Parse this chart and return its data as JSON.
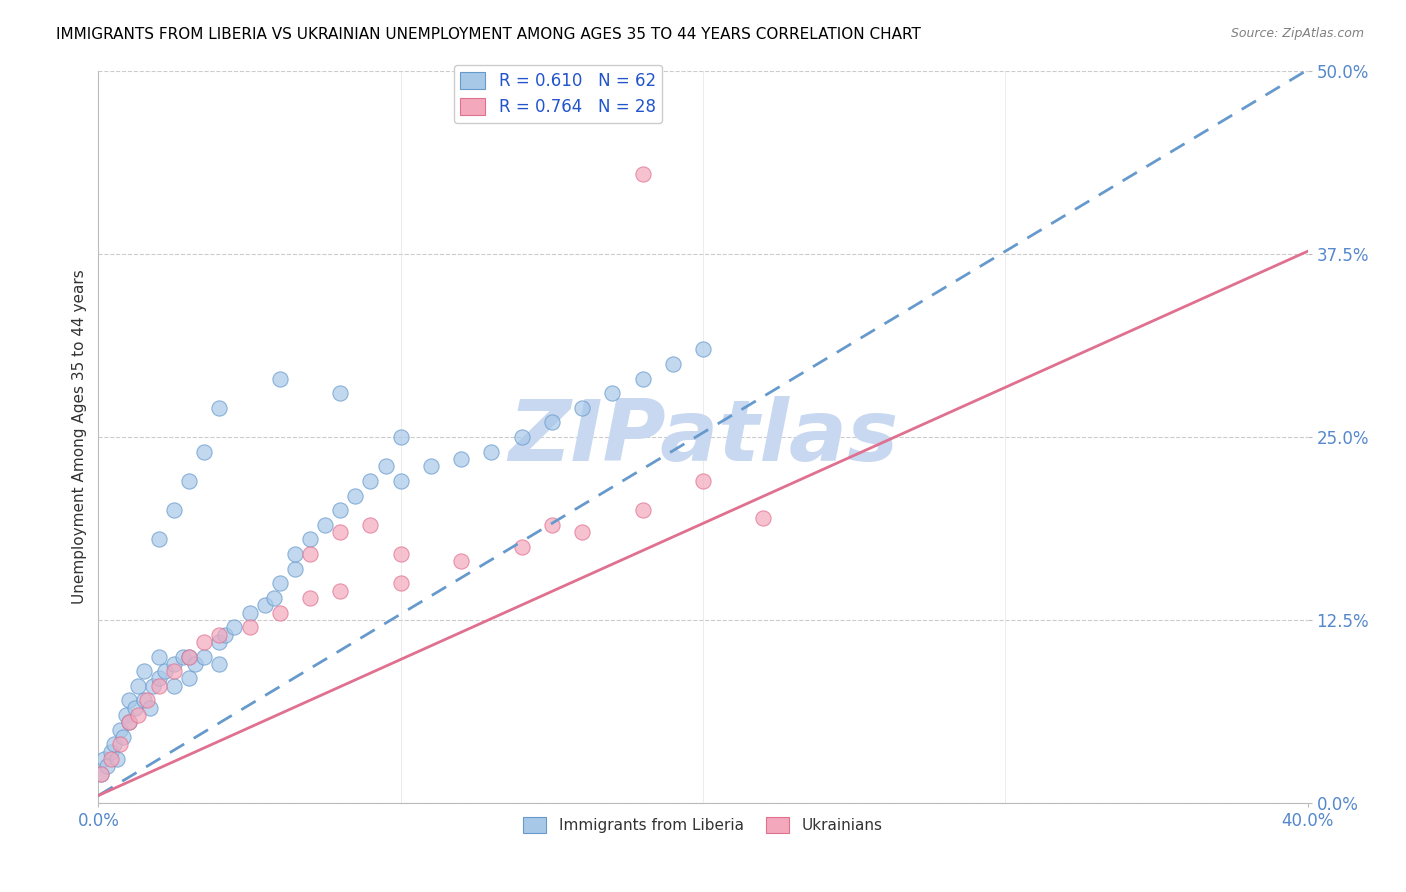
{
  "title": "IMMIGRANTS FROM LIBERIA VS UKRAINIAN UNEMPLOYMENT AMONG AGES 35 TO 44 YEARS CORRELATION CHART",
  "source": "Source: ZipAtlas.com",
  "ylabel": "Unemployment Among Ages 35 to 44 years",
  "xlim": [
    0.0,
    0.4
  ],
  "ylim": [
    0.0,
    0.5
  ],
  "xticks": [
    0.0,
    0.4
  ],
  "yticks": [
    0.0,
    0.125,
    0.25,
    0.375,
    0.5
  ],
  "ytick_labels": [
    "0.0%",
    "12.5%",
    "25.0%",
    "37.5%",
    "50.0%"
  ],
  "xtick_labels": [
    "0.0%",
    "40.0%"
  ],
  "liberia_R": 0.61,
  "liberia_N": 62,
  "ukraine_R": 0.764,
  "ukraine_N": 28,
  "liberia_color": "#A8C8E8",
  "ukraine_color": "#F4A8BC",
  "liberia_edge_color": "#6699CC",
  "ukraine_edge_color": "#E07090",
  "liberia_line_color": "#6699CC",
  "ukraine_line_color": "#E07090",
  "watermark": "ZIPatlas",
  "watermark_color": "#C8D8F0",
  "liberia_line_intercept": 0.005,
  "liberia_line_slope": 1.24,
  "ukraine_line_intercept": 0.005,
  "ukraine_line_slope": 0.93,
  "liberia_scatter_x": [
    0.001,
    0.002,
    0.003,
    0.004,
    0.005,
    0.006,
    0.007,
    0.008,
    0.009,
    0.01,
    0.01,
    0.012,
    0.013,
    0.015,
    0.015,
    0.017,
    0.018,
    0.02,
    0.02,
    0.022,
    0.025,
    0.025,
    0.028,
    0.03,
    0.03,
    0.032,
    0.035,
    0.04,
    0.04,
    0.042,
    0.045,
    0.05,
    0.055,
    0.058,
    0.06,
    0.065,
    0.065,
    0.07,
    0.075,
    0.08,
    0.085,
    0.09,
    0.095,
    0.1,
    0.11,
    0.12,
    0.13,
    0.14,
    0.15,
    0.16,
    0.17,
    0.18,
    0.19,
    0.2,
    0.02,
    0.025,
    0.03,
    0.035,
    0.04,
    0.06,
    0.08,
    0.1
  ],
  "liberia_scatter_y": [
    0.02,
    0.03,
    0.025,
    0.035,
    0.04,
    0.03,
    0.05,
    0.045,
    0.06,
    0.055,
    0.07,
    0.065,
    0.08,
    0.07,
    0.09,
    0.065,
    0.08,
    0.1,
    0.085,
    0.09,
    0.08,
    0.095,
    0.1,
    0.085,
    0.1,
    0.095,
    0.1,
    0.095,
    0.11,
    0.115,
    0.12,
    0.13,
    0.135,
    0.14,
    0.15,
    0.16,
    0.17,
    0.18,
    0.19,
    0.2,
    0.21,
    0.22,
    0.23,
    0.22,
    0.23,
    0.235,
    0.24,
    0.25,
    0.26,
    0.27,
    0.28,
    0.29,
    0.3,
    0.31,
    0.18,
    0.2,
    0.22,
    0.24,
    0.27,
    0.29,
    0.28,
    0.25
  ],
  "ukraine_scatter_x": [
    0.001,
    0.004,
    0.007,
    0.01,
    0.013,
    0.016,
    0.02,
    0.025,
    0.03,
    0.035,
    0.04,
    0.05,
    0.06,
    0.07,
    0.08,
    0.1,
    0.12,
    0.14,
    0.16,
    0.18,
    0.07,
    0.08,
    0.09,
    0.1,
    0.15,
    0.2,
    0.22,
    0.18
  ],
  "ukraine_scatter_y": [
    0.02,
    0.03,
    0.04,
    0.055,
    0.06,
    0.07,
    0.08,
    0.09,
    0.1,
    0.11,
    0.115,
    0.12,
    0.13,
    0.14,
    0.145,
    0.15,
    0.165,
    0.175,
    0.185,
    0.2,
    0.17,
    0.185,
    0.19,
    0.17,
    0.19,
    0.22,
    0.195,
    0.43
  ]
}
